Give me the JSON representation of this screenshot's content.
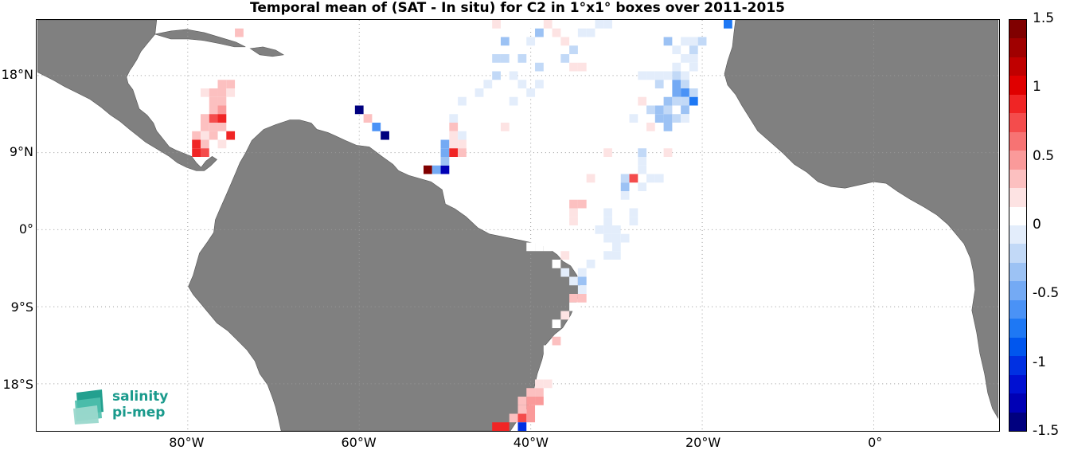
{
  "title": "Temporal mean of (SAT - In situ) for C2 in 1°x1° boxes over 2011-2015",
  "map": {
    "lon_range": [
      -97.5,
      14.5
    ],
    "lat_range": [
      -23.5,
      24.5
    ],
    "land_color": "#808080",
    "grid": "dotted",
    "xticks": [
      {
        "lon": -80,
        "label": "80°W"
      },
      {
        "lon": -60,
        "label": "60°W"
      },
      {
        "lon": -40,
        "label": "40°W"
      },
      {
        "lon": -20,
        "label": "20°W"
      },
      {
        "lon": 0,
        "label": "0°"
      }
    ],
    "yticks": [
      {
        "lat": 18,
        "label": "18°N"
      },
      {
        "lat": 9,
        "label": "9°N"
      },
      {
        "lat": 0,
        "label": "0°"
      },
      {
        "lat": -9,
        "label": "9°S"
      },
      {
        "lat": -18,
        "label": "18°S"
      }
    ]
  },
  "colorbar": {
    "range": [
      -1.5,
      1.5
    ],
    "ticks": [
      {
        "value": 1.5,
        "label": "1.5"
      },
      {
        "value": 1,
        "label": "1"
      },
      {
        "value": 0.5,
        "label": "0.5"
      },
      {
        "value": 0,
        "label": "0"
      },
      {
        "value": -0.5,
        "label": "-0.5"
      },
      {
        "value": -1,
        "label": "-1"
      },
      {
        "value": -1.5,
        "label": "-1.5"
      }
    ],
    "colors": [
      "#00007f",
      "#0000b5",
      "#0010d2",
      "#0030e2",
      "#0056ee",
      "#1e78f4",
      "#4a92f6",
      "#74aaf4",
      "#9cc2f4",
      "#c2d9f7",
      "#e3edfb",
      "#ffffff",
      "#fde3e3",
      "#fcc0c0",
      "#fa9a9a",
      "#f77373",
      "#f44c4c",
      "#f02525",
      "#e00000",
      "#c00000",
      "#a00000",
      "#800000"
    ]
  },
  "logo": {
    "line1": "salinity",
    "line2": "pi-mep"
  },
  "chart_data": {
    "type": "heatmap",
    "title": "Temporal mean of (SAT - In situ) for C2 in 1°x1° boxes over 2011-2015",
    "xlabel": "",
    "ylabel": "",
    "cells": [
      {
        "lon": -74,
        "lat": 23,
        "v": 0.3
      },
      {
        "lon": -76,
        "lat": 17,
        "v": 0.3
      },
      {
        "lon": -75,
        "lat": 17,
        "v": 0.3
      },
      {
        "lon": -78,
        "lat": 16,
        "v": 0.2
      },
      {
        "lon": -77,
        "lat": 16,
        "v": 0.3
      },
      {
        "lon": -76,
        "lat": 16,
        "v": 0.3
      },
      {
        "lon": -75,
        "lat": 16,
        "v": 0.2
      },
      {
        "lon": -77,
        "lat": 15,
        "v": 0.3
      },
      {
        "lon": -76,
        "lat": 15,
        "v": 0.4
      },
      {
        "lon": -77,
        "lat": 14,
        "v": 0.4
      },
      {
        "lon": -76,
        "lat": 14,
        "v": 0.5
      },
      {
        "lon": -78,
        "lat": 13,
        "v": 0.4
      },
      {
        "lon": -77,
        "lat": 13,
        "v": 0.8
      },
      {
        "lon": -76,
        "lat": 13,
        "v": 0.9
      },
      {
        "lon": -78,
        "lat": 12,
        "v": 0.3
      },
      {
        "lon": -77,
        "lat": 12,
        "v": 0.4
      },
      {
        "lon": -76,
        "lat": 12,
        "v": 0.3
      },
      {
        "lon": -79,
        "lat": 11,
        "v": 0.3
      },
      {
        "lon": -78,
        "lat": 11,
        "v": 0.2
      },
      {
        "lon": -77,
        "lat": 11,
        "v": 0.3
      },
      {
        "lon": -75,
        "lat": 11,
        "v": 0.9
      },
      {
        "lon": -79,
        "lat": 10,
        "v": 0.9
      },
      {
        "lon": -78,
        "lat": 10,
        "v": 0.3
      },
      {
        "lon": -76,
        "lat": 10,
        "v": 0.2
      },
      {
        "lon": -79,
        "lat": 9,
        "v": 0.9
      },
      {
        "lon": -78,
        "lat": 9,
        "v": 0.8
      },
      {
        "lon": -60,
        "lat": 14,
        "v": -1.5
      },
      {
        "lon": -59,
        "lat": 13,
        "v": 0.3
      },
      {
        "lon": -58,
        "lat": 12,
        "v": -0.6
      },
      {
        "lon": -57,
        "lat": 11,
        "v": -1.4
      },
      {
        "lon": -52,
        "lat": 7,
        "v": 1.5
      },
      {
        "lon": -51,
        "lat": 7,
        "v": -0.5
      },
      {
        "lon": -50,
        "lat": 7,
        "v": -1.3
      },
      {
        "lon": -50,
        "lat": 10,
        "v": -0.5
      },
      {
        "lon": -50,
        "lat": 9,
        "v": -0.5
      },
      {
        "lon": -50,
        "lat": 8,
        "v": -0.4
      },
      {
        "lon": -49,
        "lat": 10,
        "v": 0.2
      },
      {
        "lon": -48,
        "lat": 10,
        "v": 0.2
      },
      {
        "lon": -49,
        "lat": 9,
        "v": 0.9
      },
      {
        "lon": -48,
        "lat": 9,
        "v": 0.3
      },
      {
        "lon": -49,
        "lat": 12,
        "v": 0.3
      },
      {
        "lon": -49,
        "lat": 11,
        "v": 0.2
      },
      {
        "lon": -48,
        "lat": 11,
        "v": -0.1
      },
      {
        "lon": -49,
        "lat": 13,
        "v": -0.1
      },
      {
        "lon": -48,
        "lat": 15,
        "v": -0.1
      },
      {
        "lon": -47,
        "lat": 12,
        "v": 0.1
      },
      {
        "lon": -46,
        "lat": 16,
        "v": -0.1
      },
      {
        "lon": -45,
        "lat": 17,
        "v": -0.1
      },
      {
        "lon": -44,
        "lat": 24,
        "v": 0.2
      },
      {
        "lon": -43,
        "lat": 22,
        "v": -0.3
      },
      {
        "lon": -44,
        "lat": 20,
        "v": -0.2
      },
      {
        "lon": -43,
        "lat": 20,
        "v": -0.2
      },
      {
        "lon": -44,
        "lat": 18,
        "v": -0.2
      },
      {
        "lon": -42,
        "lat": 18,
        "v": -0.1
      },
      {
        "lon": -43,
        "lat": 12,
        "v": 0.2
      },
      {
        "lon": -42,
        "lat": 15,
        "v": -0.1
      },
      {
        "lon": -41,
        "lat": 17,
        "v": -0.1
      },
      {
        "lon": -40,
        "lat": 16,
        "v": -0.1
      },
      {
        "lon": -39,
        "lat": 17,
        "v": -0.1
      },
      {
        "lon": -41,
        "lat": 20,
        "v": -0.2
      },
      {
        "lon": -40,
        "lat": 22,
        "v": -0.1
      },
      {
        "lon": -39,
        "lat": 23,
        "v": -0.3
      },
      {
        "lon": -40,
        "lat": 24,
        "v": 0.1
      },
      {
        "lon": -39,
        "lat": 19,
        "v": -0.2
      },
      {
        "lon": -38,
        "lat": 24,
        "v": 0.2
      },
      {
        "lon": -37,
        "lat": 23,
        "v": 0.2
      },
      {
        "lon": -36,
        "lat": 22,
        "v": 0.2
      },
      {
        "lon": -35,
        "lat": 21,
        "v": -0.2
      },
      {
        "lon": -36,
        "lat": 20,
        "v": -0.2
      },
      {
        "lon": -35,
        "lat": 19,
        "v": 0.2
      },
      {
        "lon": -34,
        "lat": 23,
        "v": -0.1
      },
      {
        "lon": -34,
        "lat": 19,
        "v": 0.2
      },
      {
        "lon": -33,
        "lat": 23,
        "v": -0.1
      },
      {
        "lon": -32,
        "lat": 24,
        "v": -0.1
      },
      {
        "lon": -31,
        "lat": 24,
        "v": -0.1
      },
      {
        "lon": -24,
        "lat": 22,
        "v": -0.4
      },
      {
        "lon": -22,
        "lat": 22,
        "v": -0.1
      },
      {
        "lon": -21,
        "lat": 22,
        "v": -0.1
      },
      {
        "lon": -20,
        "lat": 22,
        "v": -0.2
      },
      {
        "lon": -23,
        "lat": 21,
        "v": -0.1
      },
      {
        "lon": -21,
        "lat": 21,
        "v": -0.2
      },
      {
        "lon": -22,
        "lat": 20,
        "v": -0.1
      },
      {
        "lon": -21,
        "lat": 20,
        "v": -0.1
      },
      {
        "lon": -23,
        "lat": 19,
        "v": -0.1
      },
      {
        "lon": -21,
        "lat": 19,
        "v": -0.1
      },
      {
        "lon": -17,
        "lat": 24,
        "v": -0.7
      },
      {
        "lon": -24,
        "lat": 23,
        "v": 0.1
      },
      {
        "lon": -21,
        "lat": 23,
        "v": 0.1
      },
      {
        "lon": -27,
        "lat": 18,
        "v": -0.1
      },
      {
        "lon": -26,
        "lat": 18,
        "v": -0.1
      },
      {
        "lon": -25,
        "lat": 18,
        "v": -0.1
      },
      {
        "lon": -24,
        "lat": 18,
        "v": -0.1
      },
      {
        "lon": -23,
        "lat": 18,
        "v": -0.2
      },
      {
        "lon": -22,
        "lat": 18,
        "v": -0.1
      },
      {
        "lon": -25,
        "lat": 17,
        "v": -0.2
      },
      {
        "lon": -23,
        "lat": 17,
        "v": -0.5
      },
      {
        "lon": -22,
        "lat": 17,
        "v": -0.2
      },
      {
        "lon": -23,
        "lat": 16,
        "v": -0.5
      },
      {
        "lon": -22,
        "lat": 16,
        "v": -0.6
      },
      {
        "lon": -21,
        "lat": 16,
        "v": -0.2
      },
      {
        "lon": -24,
        "lat": 15,
        "v": -0.3
      },
      {
        "lon": -23,
        "lat": 15,
        "v": -0.2
      },
      {
        "lon": -22,
        "lat": 15,
        "v": -0.2
      },
      {
        "lon": -21,
        "lat": 15,
        "v": -0.7
      },
      {
        "lon": -27,
        "lat": 15,
        "v": 0.2
      },
      {
        "lon": -26,
        "lat": 14,
        "v": -0.2
      },
      {
        "lon": -25,
        "lat": 14,
        "v": -0.3
      },
      {
        "lon": -24,
        "lat": 14,
        "v": -0.2
      },
      {
        "lon": -22,
        "lat": 14,
        "v": -0.3
      },
      {
        "lon": -28,
        "lat": 13,
        "v": -0.1
      },
      {
        "lon": -25,
        "lat": 13,
        "v": -0.3
      },
      {
        "lon": -24,
        "lat": 13,
        "v": -0.3
      },
      {
        "lon": -23,
        "lat": 13,
        "v": -0.2
      },
      {
        "lon": -22,
        "lat": 13,
        "v": -0.1
      },
      {
        "lon": -26,
        "lat": 12,
        "v": 0.2
      },
      {
        "lon": -25,
        "lat": 12,
        "v": 0.1
      },
      {
        "lon": -24,
        "lat": 12,
        "v": -0.3
      },
      {
        "lon": -26,
        "lat": 10,
        "v": 0.1
      },
      {
        "lon": -24,
        "lat": 9,
        "v": 0.2
      },
      {
        "lon": -31,
        "lat": 9,
        "v": 0.2
      },
      {
        "lon": -27,
        "lat": 9,
        "v": -0.2
      },
      {
        "lon": -27,
        "lat": 8,
        "v": -0.1
      },
      {
        "lon": -27,
        "lat": 7,
        "v": -0.1
      },
      {
        "lon": -26,
        "lat": 6,
        "v": -0.1
      },
      {
        "lon": -25,
        "lat": 6,
        "v": -0.1
      },
      {
        "lon": -28,
        "lat": 6,
        "v": 0.8
      },
      {
        "lon": -29,
        "lat": 6,
        "v": -0.2
      },
      {
        "lon": -33,
        "lat": 6,
        "v": 0.2
      },
      {
        "lon": -29,
        "lat": 5,
        "v": -0.3
      },
      {
        "lon": -27,
        "lat": 5,
        "v": -0.1
      },
      {
        "lon": -29,
        "lat": 4,
        "v": -0.1
      },
      {
        "lon": -35,
        "lat": 3,
        "v": 0.3
      },
      {
        "lon": -34,
        "lat": 3,
        "v": 0.3
      },
      {
        "lon": -35,
        "lat": 2,
        "v": 0.2
      },
      {
        "lon": -35,
        "lat": 1,
        "v": 0.2
      },
      {
        "lon": -31,
        "lat": 2,
        "v": -0.1
      },
      {
        "lon": -31,
        "lat": 1,
        "v": -0.1
      },
      {
        "lon": -28,
        "lat": 2,
        "v": -0.1
      },
      {
        "lon": -28,
        "lat": 1,
        "v": -0.1
      },
      {
        "lon": -31,
        "lat": 0,
        "v": -0.1
      },
      {
        "lon": -32,
        "lat": 0,
        "v": -0.1
      },
      {
        "lon": -30,
        "lat": 0,
        "v": -0.1
      },
      {
        "lon": -31,
        "lat": -1,
        "v": -0.1
      },
      {
        "lon": -30,
        "lat": -1,
        "v": -0.1
      },
      {
        "lon": -29,
        "lat": -1,
        "v": -0.1
      },
      {
        "lon": -30,
        "lat": -2,
        "v": -0.1
      },
      {
        "lon": -31,
        "lat": -3,
        "v": -0.1
      },
      {
        "lon": -30,
        "lat": -3,
        "v": -0.1
      },
      {
        "lon": -33,
        "lat": -4,
        "v": -0.1
      },
      {
        "lon": -34,
        "lat": -5,
        "v": -0.1
      },
      {
        "lon": -35,
        "lat": -6,
        "v": -0.1
      },
      {
        "lon": -36,
        "lat": -3,
        "v": 0.2
      },
      {
        "lon": -37,
        "lat": -4,
        "v": 0.1
      },
      {
        "lon": -38,
        "lat": -2,
        "v": 0.1
      },
      {
        "lon": -39,
        "lat": -2,
        "v": 0.1
      },
      {
        "lon": -40,
        "lat": -2,
        "v": 0.1
      },
      {
        "lon": -39,
        "lat": -1,
        "v": 0.1
      },
      {
        "lon": -36,
        "lat": -5,
        "v": -0.1
      },
      {
        "lon": -34,
        "lat": -6,
        "v": -0.3
      },
      {
        "lon": -34,
        "lat": -7,
        "v": -0.1
      },
      {
        "lon": -35,
        "lat": -8,
        "v": 0.3
      },
      {
        "lon": -34,
        "lat": -8,
        "v": 0.3
      },
      {
        "lon": -35,
        "lat": -9,
        "v": 0.1
      },
      {
        "lon": -36,
        "lat": -10,
        "v": 0.2
      },
      {
        "lon": -37,
        "lat": -11,
        "v": 0.1
      },
      {
        "lon": -37,
        "lat": -13,
        "v": 0.4
      },
      {
        "lon": -38,
        "lat": -14,
        "v": 0.1
      },
      {
        "lon": -38,
        "lat": -18,
        "v": 0.2
      },
      {
        "lon": -39,
        "lat": -18,
        "v": 0.2
      },
      {
        "lon": -39,
        "lat": -19,
        "v": 0.4
      },
      {
        "lon": -40,
        "lat": -19,
        "v": 0.3
      },
      {
        "lon": -39,
        "lat": -20,
        "v": 0.5
      },
      {
        "lon": -40,
        "lat": -20,
        "v": 0.5
      },
      {
        "lon": -41,
        "lat": -20,
        "v": 0.4
      },
      {
        "lon": -40,
        "lat": -21,
        "v": 0.5
      },
      {
        "lon": -41,
        "lat": -21,
        "v": 0.3
      },
      {
        "lon": -40,
        "lat": -22,
        "v": 0.5
      },
      {
        "lon": -41,
        "lat": -22,
        "v": 0.7
      },
      {
        "lon": -42,
        "lat": -22,
        "v": 0.3
      },
      {
        "lon": -43,
        "lat": -23,
        "v": 0.9
      },
      {
        "lon": -44,
        "lat": -23,
        "v": 0.9
      },
      {
        "lon": -41,
        "lat": -23,
        "v": -1.0
      }
    ]
  }
}
